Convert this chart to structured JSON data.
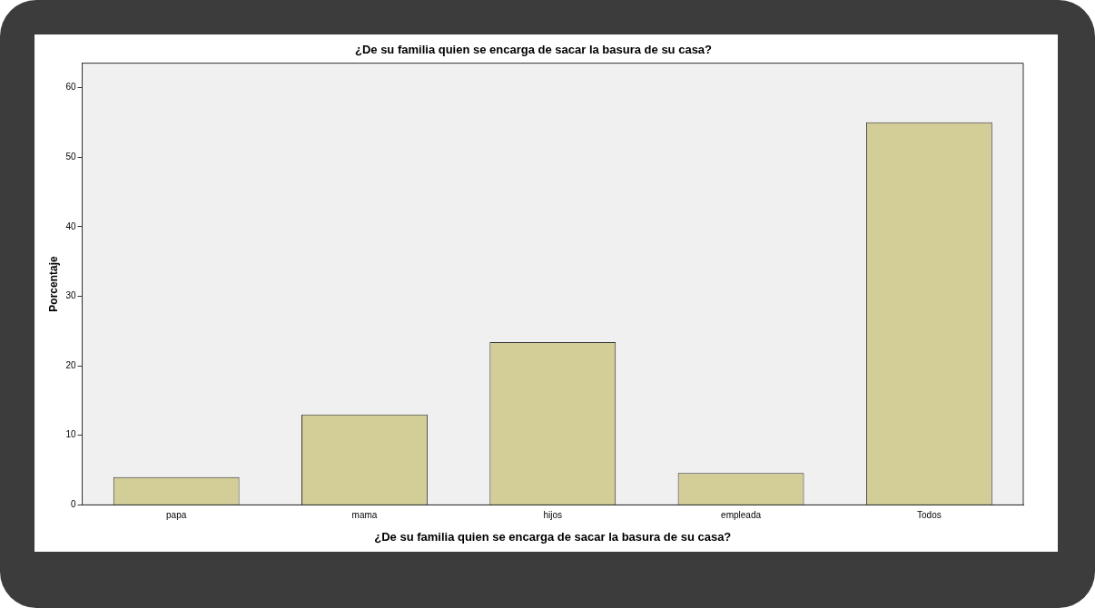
{
  "chart_data": {
    "type": "bar",
    "title": "¿De su familia quien se encarga de sacar la basura de su casa?",
    "xlabel": "¿De su familia quien se encarga de sacar la basura de su casa?",
    "ylabel": "Porcentaje",
    "categories": [
      "papa",
      "mama",
      "hijos",
      "empleada",
      "Todos"
    ],
    "values": [
      4,
      13,
      23.4,
      4.6,
      55
    ],
    "color": "#d3ce97",
    "ylim": [
      0,
      63.5
    ],
    "yticks": [
      0,
      10,
      20,
      30,
      40,
      50,
      60
    ],
    "grid": false,
    "legend": false
  }
}
